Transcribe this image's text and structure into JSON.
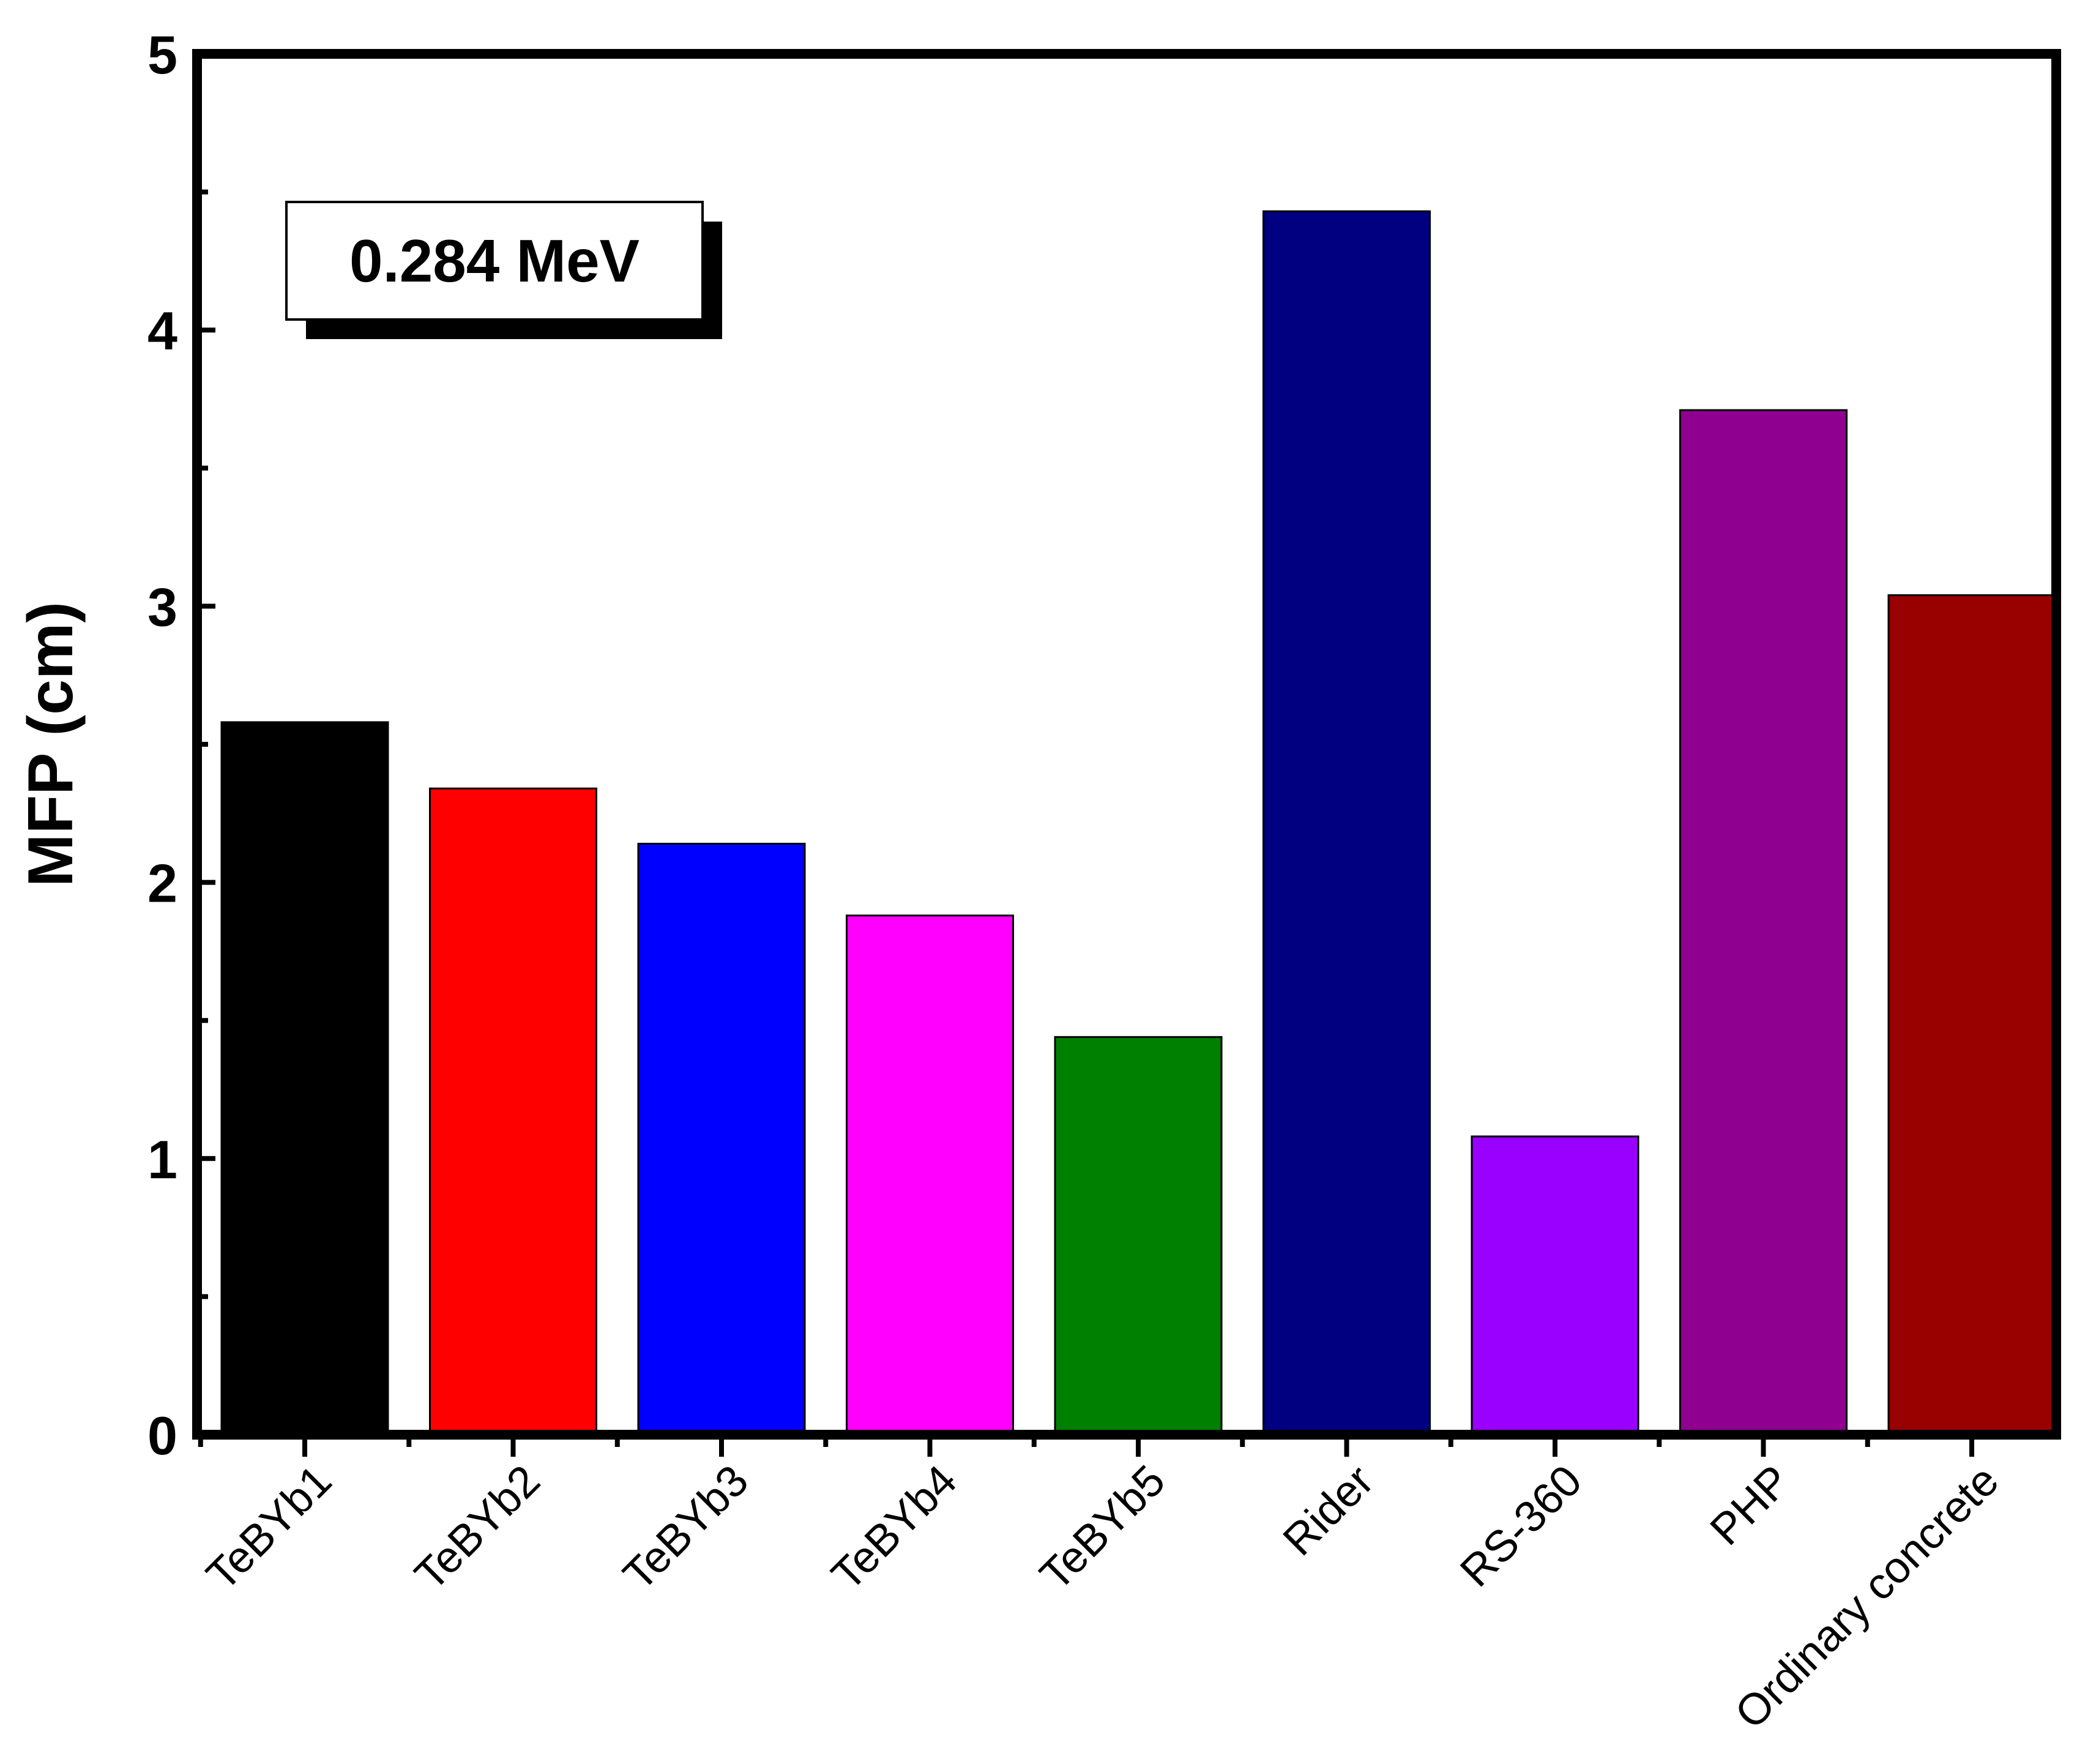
{
  "chart_data": {
    "type": "bar",
    "title": "",
    "xlabel": "",
    "ylabel": "MFP (cm)",
    "ylim": [
      0,
      5
    ],
    "yticks": [
      0,
      1,
      2,
      3,
      4,
      5
    ],
    "grid": false,
    "annotation": "0.284 MeV",
    "categories": [
      "TeBYb1",
      "TeBYb2",
      "TeBYb3",
      "TeBYb4",
      "TeBYb5",
      "Rider",
      "RS-360",
      "PHP",
      "Ordinary concrete"
    ],
    "values": [
      2.58,
      2.34,
      2.14,
      1.88,
      1.44,
      4.43,
      1.08,
      3.71,
      3.04
    ],
    "colors": [
      "#000000",
      "#ff0000",
      "#0000ff",
      "#ff00ff",
      "#008000",
      "#000080",
      "#9900ff",
      "#900090",
      "#990000"
    ]
  }
}
